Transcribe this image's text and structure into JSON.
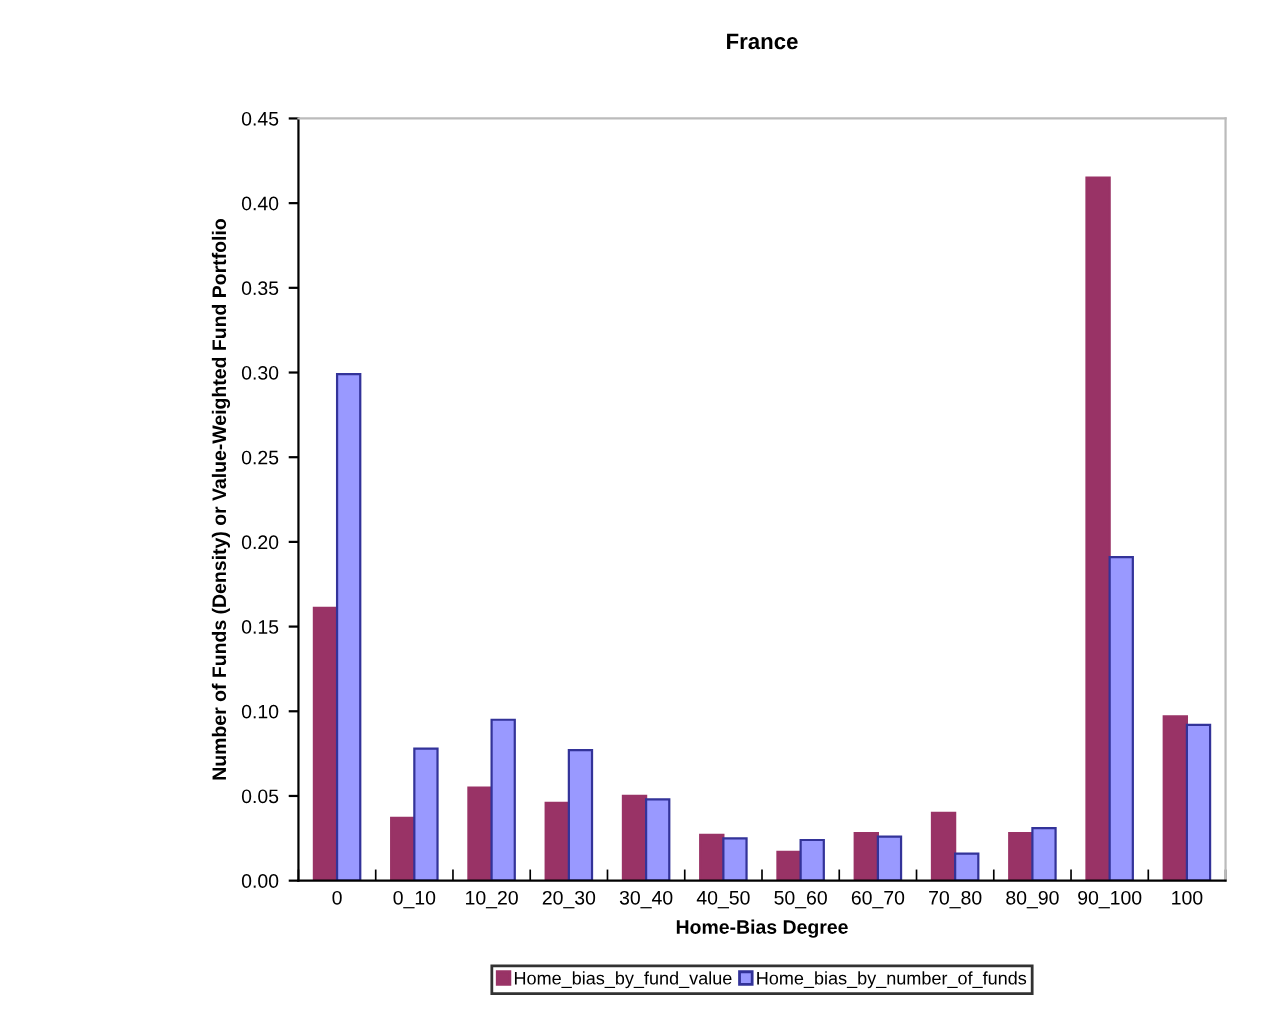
{
  "chart_data": {
    "type": "bar",
    "title": "France",
    "xlabel": "Home-Bias Degree",
    "ylabel": "Number of Funds (Density) or Value-Weighted Fund Portfolio",
    "categories": [
      "0",
      "0_10",
      "10_20",
      "20_30",
      "30_40",
      "40_50",
      "50_60",
      "60_70",
      "70_80",
      "80_90",
      "90_100",
      "100"
    ],
    "series": [
      {
        "name": "Home_bias_by_fund_value",
        "color": "#993366",
        "values": [
          0.161,
          0.037,
          0.055,
          0.046,
          0.05,
          0.027,
          0.017,
          0.028,
          0.04,
          0.028,
          0.415,
          0.097
        ]
      },
      {
        "name": "Home_bias_by_number_of_funds",
        "color": "#9999ff",
        "values": [
          0.299,
          0.078,
          0.095,
          0.077,
          0.048,
          0.025,
          0.024,
          0.026,
          0.016,
          0.031,
          0.191,
          0.092
        ]
      }
    ],
    "ylim": [
      0,
      0.45
    ],
    "yticks": [
      {
        "value": 0,
        "label": "0.00"
      },
      {
        "value": 0.05,
        "label": "0.05"
      },
      {
        "value": 0.1,
        "label": "0.10"
      },
      {
        "value": 0.15,
        "label": "0.15"
      },
      {
        "value": 0.2,
        "label": "0.20"
      },
      {
        "value": 0.25,
        "label": "0.25"
      },
      {
        "value": 0.3,
        "label": "0.30"
      },
      {
        "value": 0.35,
        "label": "0.35"
      },
      {
        "value": 0.4,
        "label": "0.40"
      },
      {
        "value": 0.45,
        "label": "0.45"
      }
    ],
    "grid": false,
    "legend": "bottom"
  }
}
